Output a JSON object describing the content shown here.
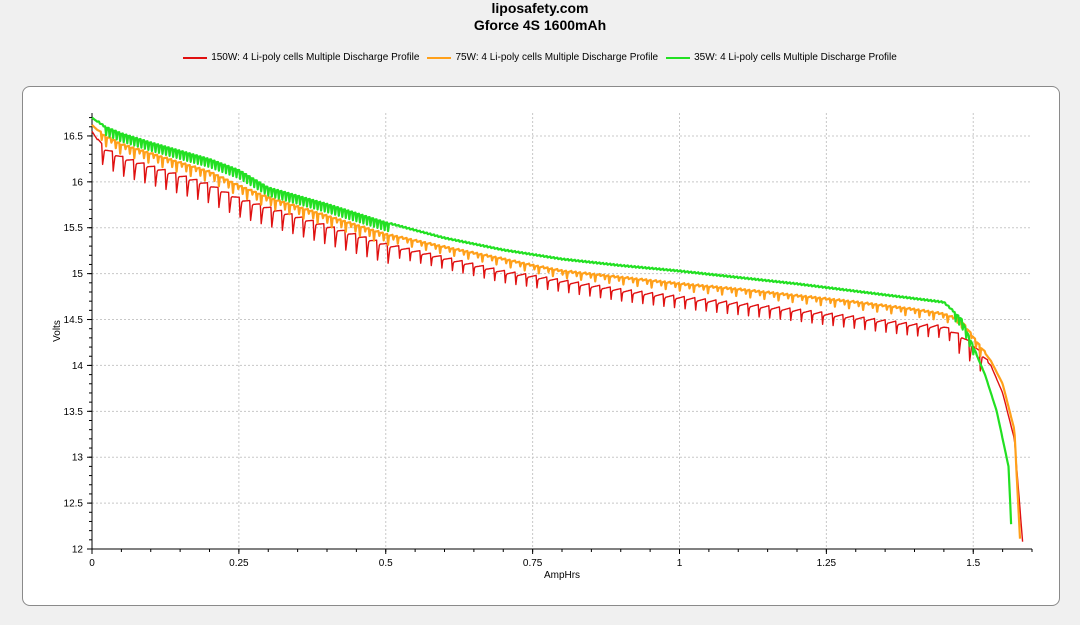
{
  "header": {
    "site": "liposafety.com",
    "title": "Gforce 4S 1600mAh"
  },
  "chart_data": {
    "type": "line",
    "title": "Gforce 4S 1600mAh",
    "xlabel": "AmpHrs",
    "ylabel": "Volts",
    "xlim": [
      0,
      1.6
    ],
    "ylim": [
      12,
      16.75
    ],
    "x_ticks": [
      0,
      0.25,
      0.5,
      0.75,
      1,
      1.25,
      1.5
    ],
    "x_tick_labels": [
      "0",
      "0.25",
      "0.5",
      "0.75",
      "1",
      "1.25",
      "1.5"
    ],
    "y_ticks": [
      12,
      12.5,
      13,
      13.5,
      14,
      14.5,
      15,
      15.5,
      16,
      16.5
    ],
    "y_tick_labels": [
      "12",
      "12.5",
      "13",
      "13.5",
      "14",
      "14.5",
      "15",
      "15.5",
      "16",
      "16.5"
    ],
    "grid": true,
    "legend_position": "top-center",
    "series": [
      {
        "name": "150W: 4 Li-poly cells Multiple Discharge Profile",
        "color": "#e01010",
        "ripple": 0.18,
        "x": [
          0,
          0.02,
          0.05,
          0.1,
          0.15,
          0.2,
          0.25,
          0.3,
          0.4,
          0.5,
          0.6,
          0.7,
          0.75,
          0.8,
          0.9,
          1.0,
          1.1,
          1.2,
          1.3,
          1.4,
          1.45,
          1.48,
          1.5,
          1.53,
          1.55,
          1.57,
          1.585
        ],
        "y": [
          16.55,
          16.35,
          16.25,
          16.15,
          16.05,
          15.95,
          15.8,
          15.7,
          15.5,
          15.3,
          15.15,
          15.0,
          14.95,
          14.9,
          14.8,
          14.72,
          14.65,
          14.58,
          14.5,
          14.42,
          14.4,
          14.3,
          14.2,
          14.0,
          13.7,
          13.2,
          12.0
        ]
      },
      {
        "name": "75W: 4 Li-poly cells Multiple Discharge Profile",
        "color": "#ffa01a",
        "ripple": 0.1,
        "x": [
          0,
          0.02,
          0.05,
          0.1,
          0.15,
          0.2,
          0.25,
          0.3,
          0.4,
          0.5,
          0.6,
          0.7,
          0.75,
          0.8,
          0.9,
          1.0,
          1.1,
          1.2,
          1.3,
          1.4,
          1.45,
          1.48,
          1.5,
          1.53,
          1.55,
          1.57,
          1.58
        ],
        "y": [
          16.62,
          16.5,
          16.4,
          16.3,
          16.2,
          16.1,
          15.95,
          15.82,
          15.62,
          15.42,
          15.28,
          15.15,
          15.08,
          15.02,
          14.95,
          14.88,
          14.82,
          14.75,
          14.68,
          14.6,
          14.55,
          14.48,
          14.3,
          14.05,
          13.8,
          13.3,
          12.05
        ]
      },
      {
        "name": "35W: 4 Li-poly cells Multiple Discharge Profile",
        "color": "#22e022",
        "ripple": 0.08,
        "x": [
          0,
          0.02,
          0.05,
          0.1,
          0.15,
          0.2,
          0.25,
          0.3,
          0.4,
          0.5,
          0.6,
          0.7,
          0.75,
          0.8,
          0.9,
          1.0,
          1.1,
          1.2,
          1.3,
          1.4,
          1.45,
          1.48,
          1.5,
          1.52,
          1.54,
          1.56,
          1.565
        ],
        "y": [
          16.7,
          16.6,
          16.52,
          16.42,
          16.33,
          16.24,
          16.12,
          15.93,
          15.75,
          15.55,
          15.38,
          15.25,
          15.2,
          15.15,
          15.08,
          15.02,
          14.95,
          14.88,
          14.8,
          14.72,
          14.68,
          14.5,
          14.2,
          13.9,
          13.5,
          12.9,
          12.2
        ]
      }
    ]
  }
}
